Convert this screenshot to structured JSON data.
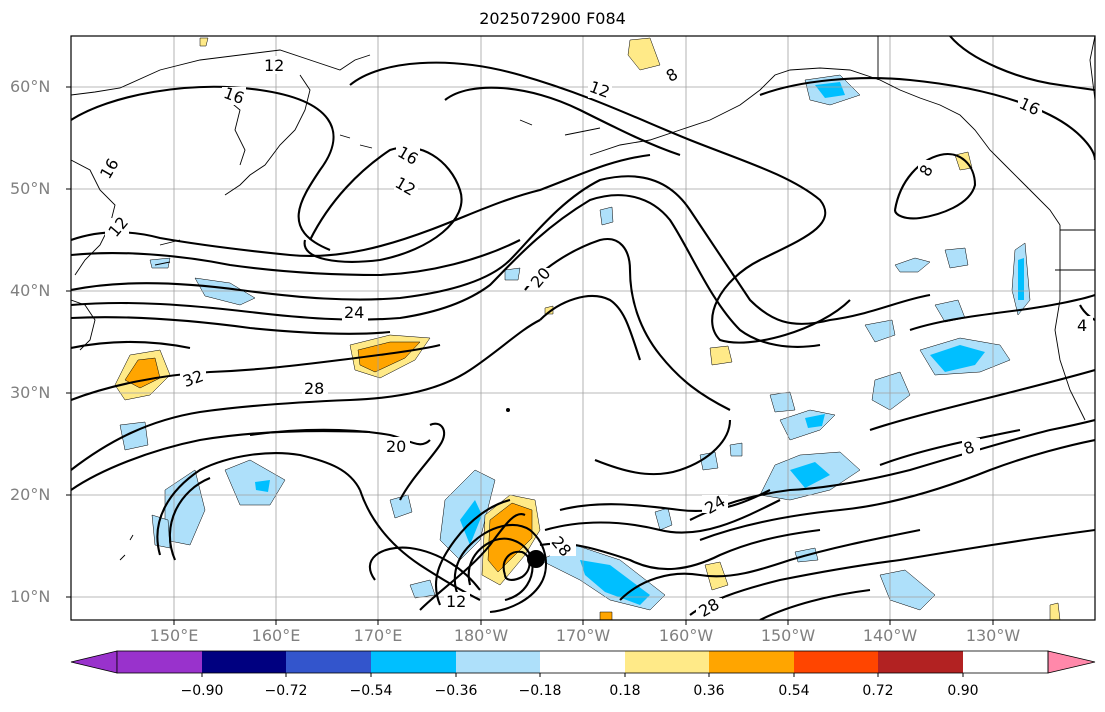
{
  "title": "2025072900 F084",
  "map": {
    "lat_labels": [
      "60°N",
      "50°N",
      "40°N",
      "30°N",
      "20°N",
      "10°N"
    ],
    "lon_labels": [
      "150°E",
      "160°E",
      "170°E",
      "180°W",
      "170°W",
      "160°W",
      "150°W",
      "140°W",
      "130°W"
    ],
    "contour_labels": [
      "12",
      "16",
      "16",
      "12",
      "8",
      "12",
      "16",
      "8",
      "16",
      "12",
      "20",
      "24",
      "32",
      "28",
      "20",
      "12",
      "28",
      "24",
      "8",
      "28",
      "4"
    ],
    "marker": "storm-center-dot"
  },
  "colorbar": {
    "ticks": [
      "−0.90",
      "−0.72",
      "−0.54",
      "−0.36",
      "−0.18",
      "0.18",
      "0.36",
      "0.54",
      "0.72",
      "0.90"
    ],
    "colors": [
      "#9932cc",
      "#000080",
      "#3355cc",
      "#00bfff",
      "#aee0fa",
      "#ffffff",
      "#ffea88",
      "#ffa500",
      "#ff4500",
      "#b22222",
      "#ff88aa"
    ]
  }
}
